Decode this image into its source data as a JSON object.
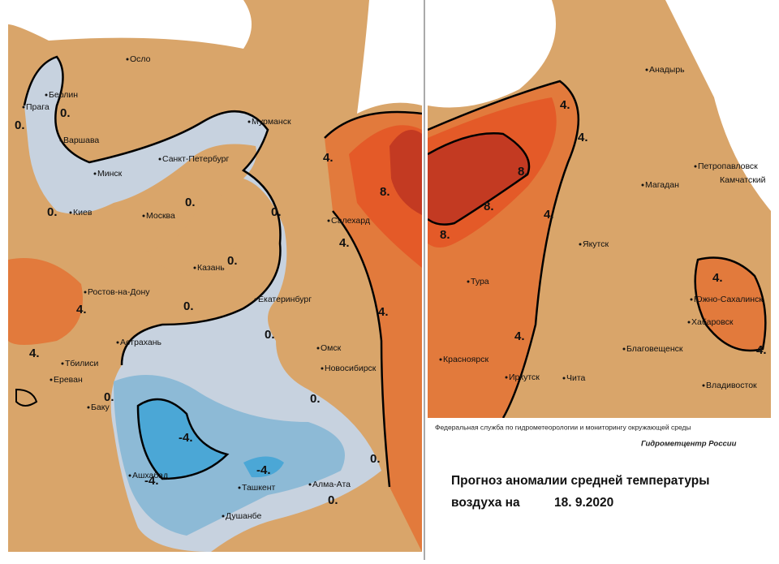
{
  "cities": [
    "Осло",
    "Берлин",
    "Прага",
    "Варшава",
    "Минск",
    "Санкт-Петербург",
    "Мурманск",
    "Киев",
    "Москва",
    "Казань",
    "Ростов-на-Дону",
    "Екатеринбург",
    "Салехард",
    "Астрахань",
    "Тбилиси",
    "Ереван",
    "Баку",
    "Омск",
    "Новосибирск",
    "Ашхабад",
    "Ташкент",
    "Алма-Ата",
    "Душанбе",
    "Анадырь",
    "Петропавловск",
    "Камчатский",
    "Магадан",
    "Якутск",
    "Тура",
    "Южно-Сахалинск",
    "Хабаровск",
    "Красноярск",
    "Иркутск",
    "Чита",
    "Благовещенск",
    "Владивосток"
  ],
  "contour_labels": [
    "0.",
    "0.",
    "0.",
    "0.",
    "0.",
    "0.",
    "0.",
    "0.",
    "0.",
    "0.",
    "0.",
    "0.",
    "4.",
    "4.",
    "4.",
    "4.",
    "4.",
    "8.",
    "-4.",
    "-4.",
    "-4.",
    "4.",
    "4.",
    "4.",
    "4.",
    "4.",
    "4.",
    "8.",
    "8.",
    "8."
  ],
  "credit": {
    "agency": "Федеральная служба по гидрометеорологии и мониторингу окружающей среды",
    "center": "Гидрометцентр России"
  },
  "title": {
    "line1": "Прогноз аномалии средней температуры",
    "line2": "воздуха на",
    "date": "18. 9.2020"
  }
}
